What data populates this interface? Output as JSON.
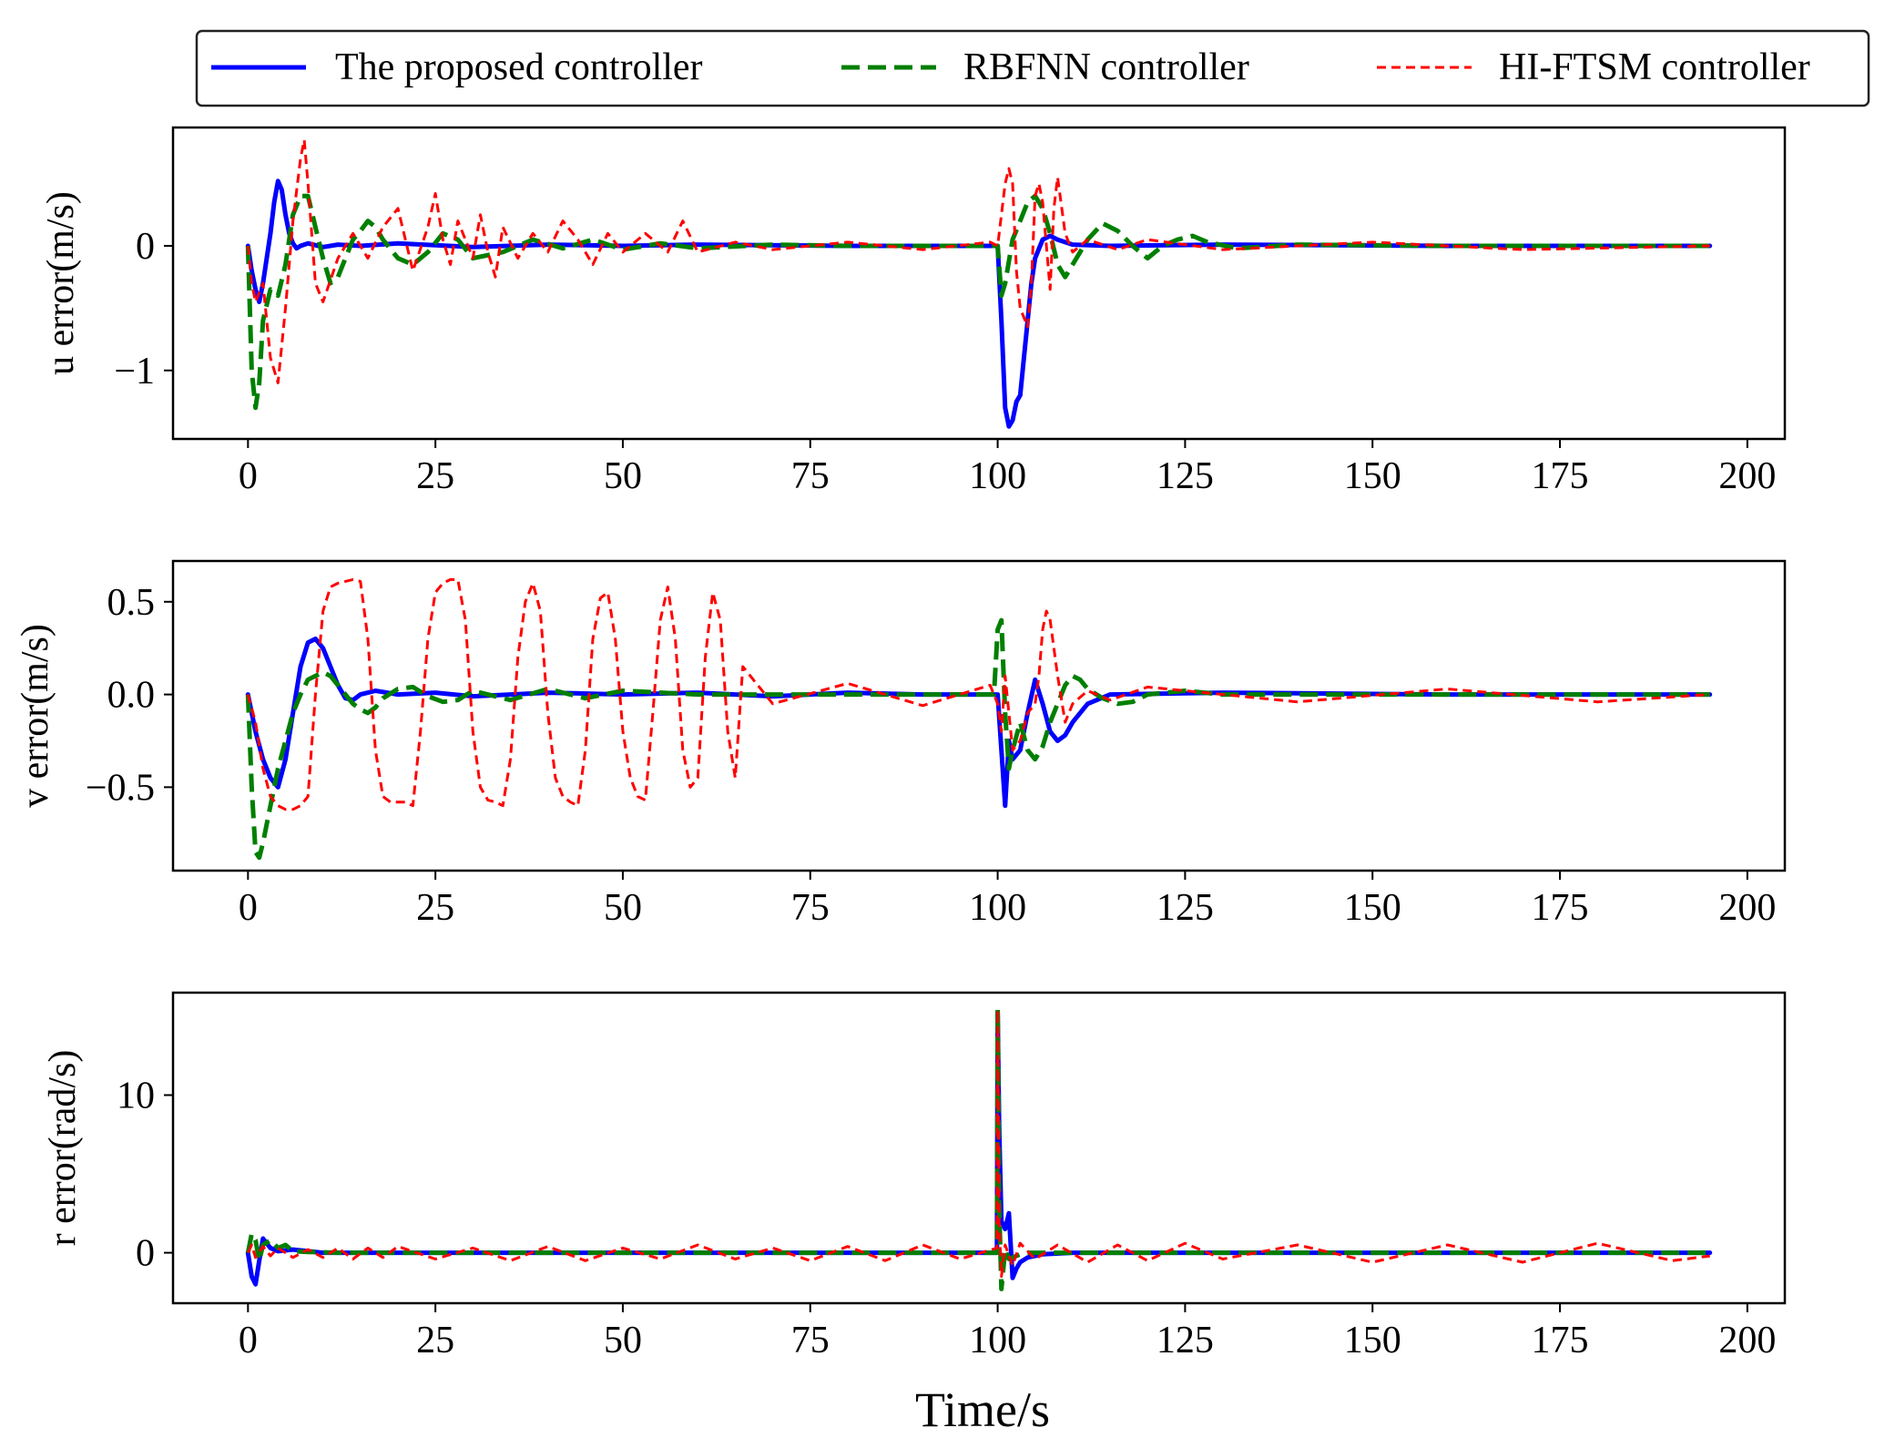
{
  "figure": {
    "xlabel": "Time/s"
  },
  "legend": {
    "placement": "top-center",
    "entries": [
      {
        "label": "The proposed controller",
        "color": "#0000ff",
        "style": "solid"
      },
      {
        "label": "RBFNN controller",
        "color": "#007f00",
        "style": "dashed"
      },
      {
        "label": "HI-FTSM controller",
        "color": "#ff0000",
        "style": "dotted-dash"
      }
    ]
  },
  "chart_data": [
    {
      "type": "line",
      "name": "u-error",
      "ylabel": "u error(m/s)",
      "xlim": [
        -10,
        205
      ],
      "ylim": [
        -1.55,
        0.95
      ],
      "xticks": [
        0,
        25,
        50,
        75,
        100,
        125,
        150,
        175,
        200
      ],
      "yticks": [
        0,
        -1
      ],
      "ytick_labels": [
        "0",
        "−1"
      ],
      "series": [
        {
          "name": "The proposed controller",
          "x": [
            0,
            0.5,
            1,
            1.5,
            2,
            2.5,
            3,
            3.5,
            4,
            4.5,
            5,
            5.5,
            6,
            6.5,
            7,
            8,
            10,
            12,
            15,
            20,
            30,
            40,
            50,
            60,
            80,
            100,
            100.5,
            101,
            101.5,
            102,
            102.5,
            103,
            103.5,
            104,
            104.5,
            105,
            106,
            107,
            108,
            110,
            115,
            130,
            160,
            195
          ],
          "y": [
            0,
            -0.2,
            -0.35,
            -0.45,
            -0.3,
            -0.1,
            0.1,
            0.35,
            0.52,
            0.45,
            0.25,
            0.1,
            0.02,
            -0.02,
            0,
            0.02,
            -0.01,
            0.01,
            0,
            0.02,
            -0.01,
            0.01,
            0,
            0.01,
            0,
            0,
            -0.6,
            -1.3,
            -1.45,
            -1.4,
            -1.25,
            -1.2,
            -0.9,
            -0.6,
            -0.3,
            -0.1,
            0.05,
            0.08,
            0.05,
            0.01,
            0,
            0.01,
            0,
            0
          ]
        },
        {
          "name": "RBFNN controller",
          "x": [
            0,
            0.5,
            1,
            1.5,
            2,
            3,
            4,
            5,
            6,
            7,
            8,
            9,
            10,
            11,
            12,
            13,
            14,
            15,
            16,
            17,
            18,
            20,
            22,
            24,
            26,
            28,
            30,
            34,
            38,
            42,
            46,
            50,
            55,
            60,
            70,
            80,
            90,
            100,
            100.5,
            101,
            102,
            103,
            104,
            105,
            106,
            107,
            108,
            109,
            110,
            112,
            114,
            116,
            118,
            120,
            122,
            124,
            126,
            128,
            132,
            140,
            160,
            195
          ],
          "y": [
            0,
            -1.0,
            -1.3,
            -1.1,
            -0.6,
            -0.35,
            -0.4,
            -0.15,
            0.25,
            0.4,
            0.4,
            0.15,
            -0.1,
            -0.3,
            -0.25,
            -0.1,
            0.05,
            0.12,
            0.2,
            0.15,
            0.05,
            -0.1,
            -0.15,
            -0.05,
            0.1,
            0.05,
            -0.1,
            -0.05,
            0.05,
            -0.02,
            0.05,
            -0.03,
            0.02,
            -0.02,
            0.01,
            0,
            0,
            0,
            -0.4,
            -0.3,
            0.05,
            0.2,
            0.35,
            0.4,
            0.3,
            0.1,
            -0.15,
            -0.25,
            -0.15,
            0.05,
            0.18,
            0.12,
            0,
            -0.1,
            0,
            0.05,
            0.08,
            0.03,
            -0.02,
            0.01,
            0,
            0
          ]
        },
        {
          "name": "HI-FTSM controller",
          "x": [
            0,
            0.5,
            1,
            2,
            3,
            4,
            5,
            6,
            7,
            7.5,
            8,
            9,
            10,
            12,
            14,
            16,
            18,
            20,
            22,
            24,
            25,
            26,
            27,
            28,
            30,
            31,
            32,
            33,
            34,
            36,
            38,
            40,
            42,
            44,
            46,
            48,
            50,
            53,
            56,
            58,
            60,
            65,
            70,
            80,
            90,
            99,
            100,
            101,
            101.5,
            102,
            102.5,
            103,
            104,
            104.5,
            105,
            105.5,
            106,
            107,
            107.5,
            108,
            109,
            110,
            112,
            116,
            120,
            130,
            150,
            170,
            195
          ],
          "y": [
            0,
            -0.3,
            -0.45,
            -0.3,
            -0.9,
            -1.1,
            -0.5,
            0.2,
            0.7,
            0.85,
            0.5,
            -0.3,
            -0.45,
            -0.1,
            0.1,
            -0.1,
            0.15,
            0.3,
            -0.2,
            0.15,
            0.42,
            0.05,
            -0.15,
            0.2,
            -0.1,
            0.25,
            -0.05,
            -0.25,
            0.15,
            -0.1,
            0.1,
            -0.05,
            0.2,
            0.05,
            -0.15,
            0.1,
            -0.05,
            0.1,
            -0.05,
            0.2,
            -0.05,
            0.03,
            -0.03,
            0.03,
            -0.03,
            0.03,
            0,
            0.5,
            0.62,
            0.5,
            -0.2,
            -0.5,
            -0.65,
            -0.3,
            0.4,
            0.5,
            0.35,
            -0.35,
            0.3,
            0.55,
            0.1,
            -0.05,
            0.05,
            -0.03,
            0.05,
            -0.03,
            0.03,
            -0.03,
            0
          ]
        }
      ]
    },
    {
      "type": "line",
      "name": "v-error",
      "ylabel": "v error(m/s)",
      "xlim": [
        -10,
        205
      ],
      "ylim": [
        -0.95,
        0.72
      ],
      "xticks": [
        0,
        25,
        50,
        75,
        100,
        125,
        150,
        175,
        200
      ],
      "yticks": [
        0.5,
        0.0,
        -0.5
      ],
      "ytick_labels": [
        "0.5",
        "0.0",
        "−0.5"
      ],
      "series": [
        {
          "name": "The proposed controller",
          "x": [
            0,
            1,
            2,
            3,
            4,
            5,
            6,
            7,
            8,
            9,
            10,
            11,
            12,
            13,
            14,
            15,
            17,
            20,
            25,
            30,
            40,
            50,
            60,
            70,
            80,
            90,
            100,
            100.5,
            101,
            101.5,
            102,
            103,
            104,
            105,
            106,
            107,
            108,
            109,
            110,
            112,
            115,
            130,
            160,
            195
          ],
          "y": [
            0,
            -0.2,
            -0.35,
            -0.45,
            -0.5,
            -0.35,
            -0.1,
            0.15,
            0.28,
            0.3,
            0.25,
            0.15,
            0.05,
            -0.02,
            -0.03,
            0,
            0.02,
            0,
            0.01,
            -0.01,
            0.01,
            0,
            0.01,
            -0.01,
            0.01,
            0,
            0,
            -0.3,
            -0.6,
            -0.25,
            -0.35,
            -0.3,
            -0.1,
            0.08,
            -0.05,
            -0.2,
            -0.25,
            -0.22,
            -0.15,
            -0.05,
            0,
            0.01,
            0,
            0
          ]
        },
        {
          "name": "RBFNN controller",
          "x": [
            0,
            0.5,
            1,
            1.5,
            2,
            3,
            4,
            5,
            6,
            7,
            8,
            9,
            10,
            11,
            12,
            13,
            14,
            15,
            16,
            17,
            18,
            20,
            22,
            24,
            26,
            28,
            30,
            35,
            40,
            45,
            50,
            60,
            70,
            80,
            90,
            99.5,
            100,
            100.5,
            101,
            101.5,
            102,
            103,
            104,
            105,
            106,
            107,
            108,
            109,
            110,
            111,
            112,
            114,
            116,
            118,
            120,
            125,
            130,
            160,
            195
          ],
          "y": [
            0,
            -0.5,
            -0.85,
            -0.88,
            -0.8,
            -0.6,
            -0.4,
            -0.25,
            -0.1,
            0,
            0.08,
            0.1,
            0.12,
            0.1,
            0.05,
            0,
            -0.05,
            -0.08,
            -0.1,
            -0.07,
            -0.02,
            0.03,
            0.04,
            -0.01,
            -0.04,
            -0.03,
            0.02,
            -0.03,
            0.03,
            -0.02,
            0.02,
            0,
            0,
            0,
            0,
            0,
            0.35,
            0.4,
            -0.1,
            -0.4,
            -0.3,
            -0.15,
            -0.3,
            -0.35,
            -0.28,
            -0.15,
            -0.05,
            0.05,
            0.1,
            0.08,
            0.03,
            -0.02,
            -0.05,
            -0.04,
            0,
            0.02,
            0,
            0,
            0
          ]
        },
        {
          "name": "HI-FTSM controller",
          "x": [
            0,
            1,
            2,
            3,
            4,
            5,
            6,
            7,
            8,
            9,
            10,
            11,
            12,
            13,
            14,
            15,
            16,
            17,
            18,
            19,
            20,
            21,
            22,
            23,
            24,
            25,
            26,
            27,
            28,
            29,
            30,
            31,
            32,
            33,
            34,
            35,
            36,
            37,
            38,
            39,
            40,
            41,
            42,
            43,
            44,
            45,
            46,
            47,
            48,
            49,
            50,
            51,
            52,
            53,
            54,
            55,
            56,
            57,
            58,
            59,
            60,
            61,
            62,
            63,
            64,
            65,
            66,
            70,
            80,
            90,
            99,
            100,
            100.5,
            101,
            102,
            103,
            104,
            105,
            105.5,
            106,
            106.5,
            107,
            108,
            109,
            110,
            112,
            115,
            120,
            140,
            160,
            180,
            195
          ],
          "y": [
            0,
            -0.15,
            -0.4,
            -0.55,
            -0.6,
            -0.62,
            -0.62,
            -0.6,
            -0.55,
            0.0,
            0.45,
            0.58,
            0.6,
            0.61,
            0.62,
            0.61,
            0.3,
            -0.3,
            -0.55,
            -0.58,
            -0.58,
            -0.58,
            -0.6,
            -0.2,
            0.3,
            0.55,
            0.6,
            0.62,
            0.62,
            0.4,
            -0.2,
            -0.5,
            -0.57,
            -0.58,
            -0.6,
            -0.35,
            0.2,
            0.5,
            0.6,
            0.45,
            -0.1,
            -0.45,
            -0.55,
            -0.58,
            -0.6,
            -0.3,
            0.3,
            0.52,
            0.55,
            0.3,
            -0.2,
            -0.45,
            -0.55,
            -0.57,
            -0.1,
            0.4,
            0.58,
            0.3,
            -0.3,
            -0.5,
            -0.45,
            0.2,
            0.55,
            0.4,
            -0.2,
            -0.45,
            0.15,
            -0.05,
            0.06,
            -0.06,
            0.05,
            -0.05,
            -0.2,
            0.1,
            -0.3,
            -0.25,
            -0.1,
            -0.05,
            0.1,
            0.35,
            0.45,
            0.4,
            0.1,
            -0.15,
            -0.05,
            0.02,
            -0.03,
            0.04,
            -0.04,
            0.03,
            -0.04,
            0
          ]
        }
      ]
    },
    {
      "type": "line",
      "name": "r-error",
      "ylabel": "r error(rad/s)",
      "xlim": [
        -10,
        205
      ],
      "ylim": [
        -3.2,
        16.5
      ],
      "xticks": [
        0,
        25,
        50,
        75,
        100,
        125,
        150,
        175,
        200
      ],
      "yticks": [
        10,
        0
      ],
      "ytick_labels": [
        "10",
        "0"
      ],
      "series": [
        {
          "name": "The proposed controller",
          "x": [
            0,
            0.5,
            1,
            1.5,
            2,
            3,
            4,
            6,
            10,
            20,
            50,
            80,
            99.9,
            100,
            100.2,
            100.5,
            101,
            101.5,
            102,
            102.5,
            103,
            104,
            106,
            110,
            130,
            160,
            195
          ],
          "y": [
            0,
            -1.5,
            -2.0,
            -0.5,
            0.9,
            0.3,
            0.1,
            0.2,
            0,
            0,
            0,
            0,
            0,
            15.2,
            8.0,
            2.0,
            1.5,
            2.5,
            -1.6,
            -1.0,
            -0.6,
            -0.3,
            -0.1,
            0,
            0,
            0,
            0
          ]
        },
        {
          "name": "RBFNN controller",
          "x": [
            0,
            0.5,
            1,
            1.5,
            2,
            3,
            4,
            5,
            6,
            8,
            12,
            20,
            50,
            80,
            99.9,
            100,
            100.2,
            100.5,
            101,
            101.5,
            102,
            103,
            104,
            106,
            110,
            130,
            160,
            195
          ],
          "y": [
            0,
            1.2,
            0.8,
            -0.5,
            0.5,
            0.8,
            0.3,
            0.5,
            0.1,
            0.05,
            0,
            0,
            0,
            0,
            0,
            15.5,
            3.0,
            -2.3,
            0.2,
            -0.4,
            -0.3,
            -0.1,
            0,
            0,
            0,
            0,
            0,
            0
          ]
        },
        {
          "name": "HI-FTSM controller",
          "x": [
            0,
            0.5,
            1,
            2,
            3,
            4,
            6,
            8,
            10,
            12,
            14,
            16,
            18,
            20,
            25,
            30,
            35,
            40,
            45,
            50,
            55,
            60,
            65,
            70,
            75,
            80,
            85,
            90,
            95,
            99.9,
            100,
            100.2,
            100.5,
            101,
            102,
            103,
            105,
            108,
            112,
            116,
            120,
            125,
            130,
            140,
            150,
            160,
            170,
            180,
            190,
            195
          ],
          "y": [
            0,
            0.5,
            -0.3,
            0.4,
            -0.2,
            0.3,
            -0.3,
            0.2,
            -0.3,
            0.3,
            -0.4,
            0.3,
            -0.3,
            0.4,
            -0.4,
            0.3,
            -0.5,
            0.4,
            -0.5,
            0.3,
            -0.4,
            0.5,
            -0.4,
            0.3,
            -0.5,
            0.4,
            -0.5,
            0.5,
            -0.4,
            0.3,
            15.4,
            2.0,
            -1.5,
            0.5,
            -0.8,
            0.6,
            -0.4,
            0.5,
            -0.6,
            0.5,
            -0.5,
            0.6,
            -0.4,
            0.5,
            -0.6,
            0.5,
            -0.6,
            0.6,
            -0.5,
            -0.2
          ]
        }
      ]
    }
  ]
}
